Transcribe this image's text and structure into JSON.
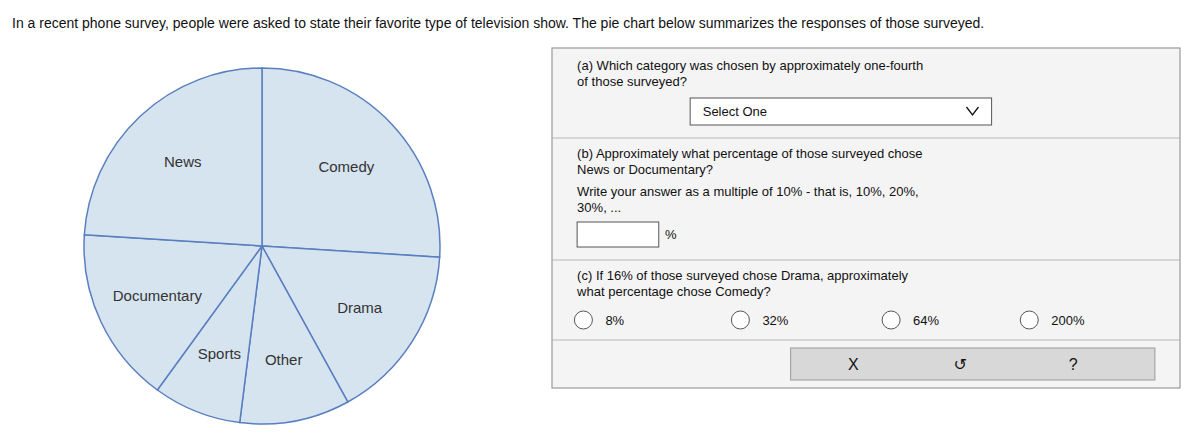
{
  "chart_data": {
    "type": "pie",
    "title": "In a recent phone survey, people were asked to state their favorite type of television show. The pie chart below summarizes the responses of those surveyed.",
    "categories": [
      "Comedy",
      "Drama",
      "Other",
      "Sports",
      "Documentary",
      "News"
    ],
    "values": [
      26,
      16,
      10,
      8,
      16,
      24
    ],
    "color": "#d6e4f0",
    "annotations": [
      "(a) Which category was chosen by approximately one-fourth\nof those surveyed?",
      "Select One",
      "(b) Approximately what percentage of those surveyed chose\nNews or Documentary?",
      "Write your answer as a multiple of 10% - that is, 10%, 20%,\n30%, ...",
      "%",
      "(c) If 16% of those surveyed chose Drama, approximately\nwhat percentage chose Comedy?",
      "8%",
      "32%",
      "64%",
      "200%",
      "X",
      "↺",
      "?"
    ]
  }
}
